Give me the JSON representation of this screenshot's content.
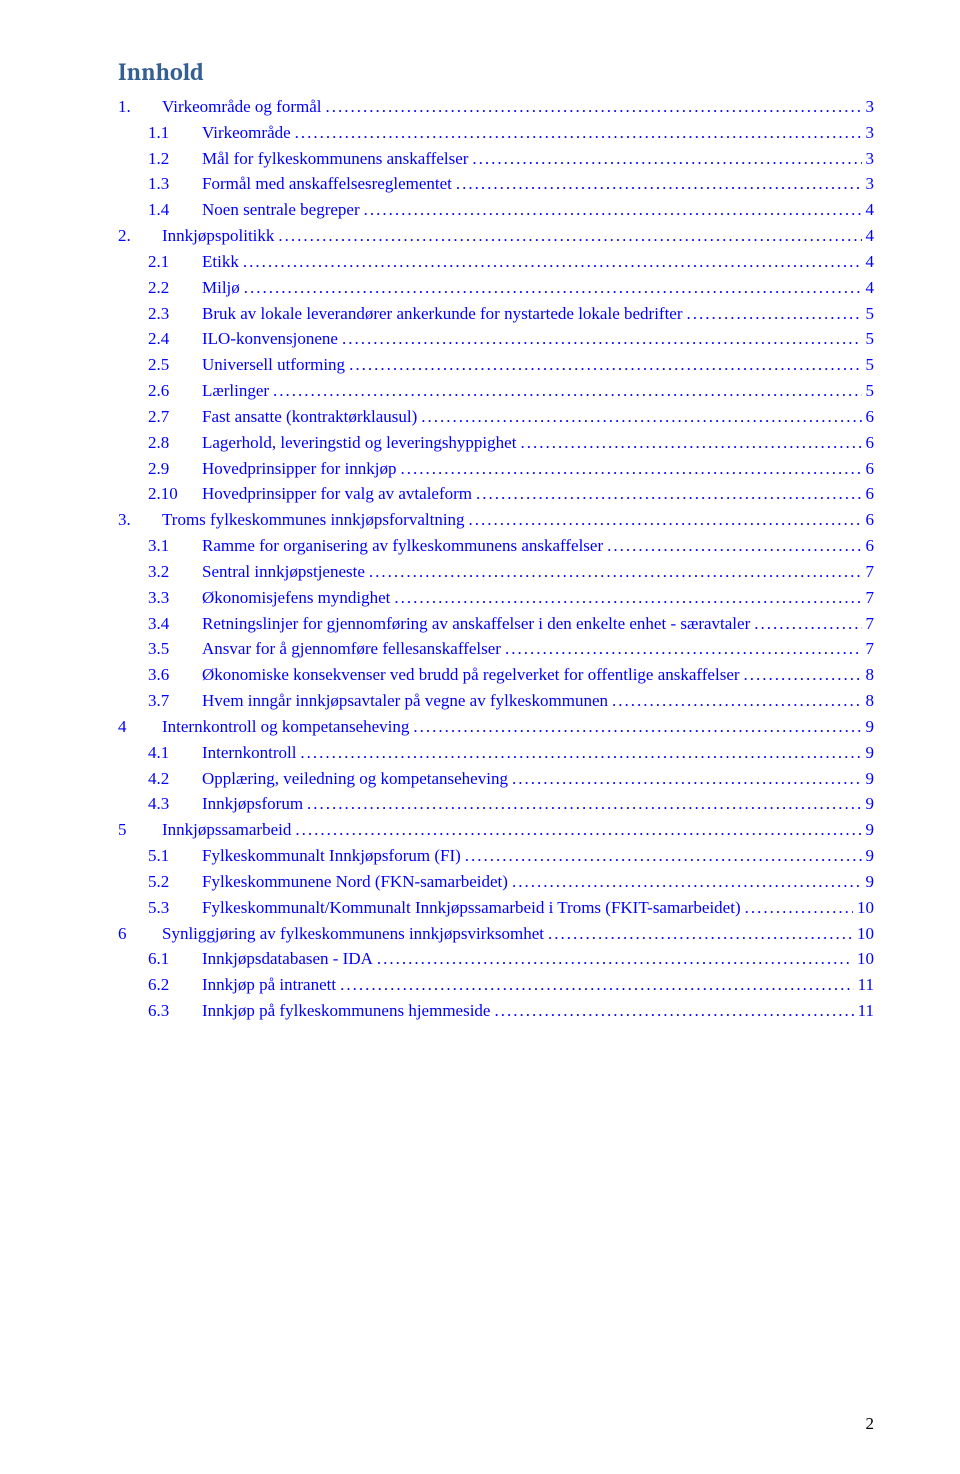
{
  "title": "Innhold",
  "page_number": "2",
  "colors": {
    "title": "#365f91",
    "link": "#0000ff",
    "background": "#ffffff",
    "text": "#000000"
  },
  "fonts": {
    "title_family": "Cambria",
    "title_size_pt": 18,
    "body_family": "Times New Roman",
    "body_size_pt": 12
  },
  "toc": [
    {
      "level": 0,
      "num": "1.",
      "label": "Virkeområde og formål",
      "page": "3"
    },
    {
      "level": 1,
      "num": "1.1",
      "label": "Virkeområde",
      "page": "3"
    },
    {
      "level": 1,
      "num": "1.2",
      "label": "Mål for fylkeskommunens anskaffelser",
      "page": "3"
    },
    {
      "level": 1,
      "num": "1.3",
      "label": "Formål med anskaffelsesreglementet",
      "page": "3"
    },
    {
      "level": 1,
      "num": "1.4",
      "label": "Noen sentrale begreper",
      "page": "4"
    },
    {
      "level": 0,
      "num": "2.",
      "label": "Innkjøpspolitikk",
      "page": "4"
    },
    {
      "level": 1,
      "num": "2.1",
      "label": "Etikk",
      "page": "4"
    },
    {
      "level": 1,
      "num": "2.2",
      "label": "Miljø",
      "page": "4"
    },
    {
      "level": 1,
      "num": "2.3",
      "label": "Bruk av lokale leverandører ankerkunde for nystartede lokale bedrifter",
      "page": "5"
    },
    {
      "level": 1,
      "num": "2.4",
      "label": "ILO-konvensjonene",
      "page": "5"
    },
    {
      "level": 1,
      "num": "2.5",
      "label": "Universell utforming",
      "page": "5"
    },
    {
      "level": 1,
      "num": "2.6",
      "label": "Lærlinger",
      "page": "5"
    },
    {
      "level": 1,
      "num": "2.7",
      "label": "Fast ansatte (kontraktørklausul)",
      "page": "6"
    },
    {
      "level": 1,
      "num": "2.8",
      "label": "Lagerhold, leveringstid og leveringshyppighet",
      "page": "6"
    },
    {
      "level": 1,
      "num": "2.9",
      "label": "Hovedprinsipper for innkjøp",
      "page": "6"
    },
    {
      "level": 1,
      "num": "2.10",
      "label": "Hovedprinsipper for valg av avtaleform",
      "page": "6"
    },
    {
      "level": 0,
      "num": "3.",
      "label": "Troms fylkeskommunes innkjøpsforvaltning",
      "page": "6"
    },
    {
      "level": 1,
      "num": "3.1",
      "label": "Ramme for organisering av fylkeskommunens anskaffelser",
      "page": "6"
    },
    {
      "level": 1,
      "num": "3.2",
      "label": "Sentral innkjøpstjeneste",
      "page": "7"
    },
    {
      "level": 1,
      "num": "3.3",
      "label": "Økonomisjefens myndighet",
      "page": "7"
    },
    {
      "level": 1,
      "num": "3.4",
      "label": "Retningslinjer for gjennomføring av anskaffelser i den enkelte enhet - særavtaler",
      "page": "7"
    },
    {
      "level": 1,
      "num": "3.5",
      "label": "Ansvar for å gjennomføre fellesanskaffelser",
      "page": "7"
    },
    {
      "level": 1,
      "num": "3.6",
      "label": "Økonomiske konsekvenser ved brudd på regelverket for offentlige anskaffelser",
      "page": "8"
    },
    {
      "level": 1,
      "num": "3.7",
      "label": "Hvem inngår innkjøpsavtaler på vegne av fylkeskommunen",
      "page": "8"
    },
    {
      "level": 0,
      "num": "4",
      "label": "Internkontroll og kompetanseheving",
      "page": "9"
    },
    {
      "level": 1,
      "num": "4.1",
      "label": "Internkontroll",
      "page": "9"
    },
    {
      "level": 1,
      "num": "4.2",
      "label": "Opplæring, veiledning og kompetanseheving",
      "page": "9"
    },
    {
      "level": 1,
      "num": "4.3",
      "label": "Innkjøpsforum",
      "page": "9"
    },
    {
      "level": 0,
      "num": "5",
      "label": "Innkjøpssamarbeid",
      "page": "9"
    },
    {
      "level": 1,
      "num": "5.1",
      "label": "Fylkeskommunalt Innkjøpsforum (FI)",
      "page": "9"
    },
    {
      "level": 1,
      "num": "5.2",
      "label": "Fylkeskommunene Nord (FKN-samarbeidet)",
      "page": "9"
    },
    {
      "level": 1,
      "num": "5.3",
      "label": "Fylkeskommunalt/Kommunalt Innkjøpssamarbeid i Troms (FKIT-samarbeidet)",
      "page": "10"
    },
    {
      "level": 0,
      "num": "6",
      "label": "Synliggjøring av fylkeskommunens innkjøpsvirksomhet",
      "page": "10"
    },
    {
      "level": 1,
      "num": "6.1",
      "label": "Innkjøpsdatabasen - IDA",
      "page": "10"
    },
    {
      "level": 1,
      "num": "6.2",
      "label": "Innkjøp på intranett",
      "page": "11"
    },
    {
      "level": 1,
      "num": "6.3",
      "label": "Innkjøp på fylkeskommunens hjemmeside",
      "page": "11"
    }
  ]
}
